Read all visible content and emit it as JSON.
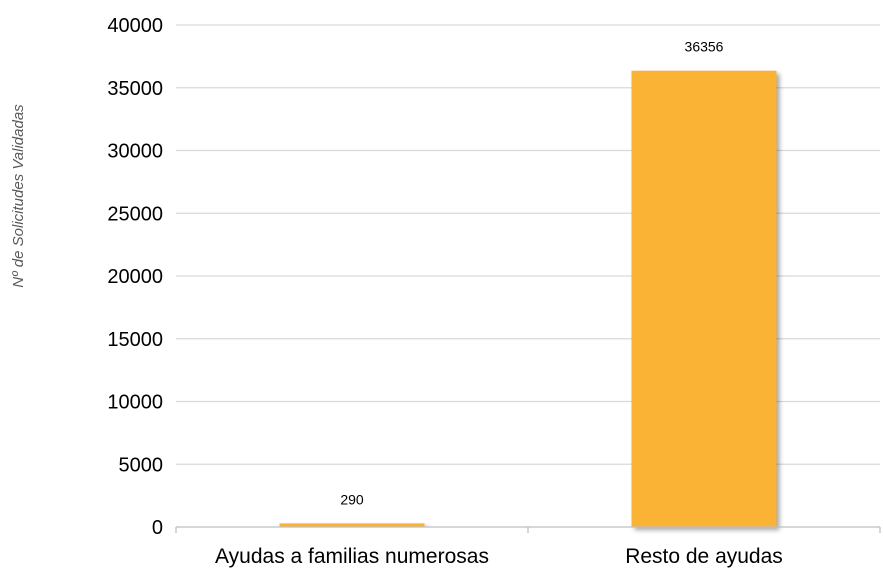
{
  "chart_data": {
    "type": "bar",
    "title": "",
    "xlabel": "",
    "ylabel": "Nº de Solicitudes Validadas",
    "categories": [
      "Ayudas a familias numerosas",
      "Resto de ayudas"
    ],
    "values": [
      290,
      36356
    ],
    "data_labels": [
      "290",
      "36356"
    ],
    "ylim": [
      0,
      40000
    ],
    "yticks": [
      0,
      5000,
      10000,
      15000,
      20000,
      25000,
      30000,
      35000,
      40000
    ],
    "ytick_labels": [
      "0",
      "5000",
      "10000",
      "15000",
      "20000",
      "25000",
      "30000",
      "35000",
      "40000"
    ],
    "grid": true,
    "legend": "none",
    "colors": {
      "bar": "#FBB334",
      "grid": "#D9D9D9",
      "axis": "#BFBFBF",
      "axis_title": "#595959"
    }
  }
}
